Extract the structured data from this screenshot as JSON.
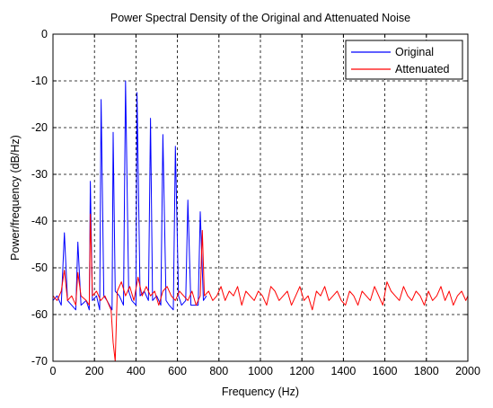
{
  "chart_data": {
    "type": "line",
    "title": "Power Spectral Density of the Original and Attenuated Noise",
    "xlabel": "Frequency (Hz)",
    "ylabel": "Power/frequency (dB/Hz)",
    "xlim": [
      0,
      2000
    ],
    "ylim": [
      -70,
      0
    ],
    "xticks": [
      0,
      200,
      400,
      600,
      800,
      1000,
      1200,
      1400,
      1600,
      1800,
      2000
    ],
    "yticks": [
      0,
      -10,
      -20,
      -30,
      -40,
      -50,
      -60,
      -70
    ],
    "grid": true,
    "legend_position": "top-right",
    "series": [
      {
        "name": "Original",
        "color": "#0000ff",
        "x": [
          0,
          20,
          40,
          55,
          70,
          90,
          110,
          120,
          135,
          160,
          175,
          180,
          190,
          210,
          225,
          232,
          245,
          260,
          285,
          290,
          300,
          320,
          340,
          350,
          365,
          380,
          400,
          405,
          420,
          440,
          460,
          470,
          480,
          500,
          520,
          530,
          545,
          560,
          580,
          590,
          605,
          620,
          640,
          650,
          665,
          680,
          700,
          710,
          725,
          740
        ],
        "values": [
          -57,
          -56,
          -58,
          -42.5,
          -57,
          -58,
          -59,
          -44.5,
          -58,
          -57,
          -59,
          -31.5,
          -57,
          -56,
          -59,
          -14,
          -56,
          -57,
          -59,
          -21,
          -55,
          -56,
          -58,
          -10,
          -55,
          -57,
          -58,
          -12.5,
          -56,
          -55,
          -57,
          -18,
          -57,
          -56,
          -58,
          -21.5,
          -57,
          -58,
          -59,
          -24,
          -56,
          -58,
          -57,
          -35.5,
          -58,
          -58,
          -58,
          -38,
          -57,
          -56
        ]
      },
      {
        "name": "Attenuated",
        "color": "#ff0000",
        "x": [
          0,
          20,
          40,
          55,
          70,
          90,
          110,
          120,
          135,
          160,
          175,
          180,
          190,
          210,
          230,
          250,
          280,
          290,
          300,
          310,
          330,
          350,
          370,
          390,
          410,
          430,
          450,
          470,
          490,
          510,
          530,
          550,
          570,
          590,
          610,
          630,
          650,
          670,
          690,
          710,
          720,
          730,
          750,
          770,
          790,
          810,
          830,
          850,
          870,
          890,
          910,
          930,
          950,
          970,
          990,
          1010,
          1030,
          1050,
          1070,
          1090,
          1110,
          1130,
          1150,
          1170,
          1190,
          1210,
          1230,
          1250,
          1270,
          1290,
          1310,
          1330,
          1350,
          1370,
          1390,
          1410,
          1430,
          1450,
          1470,
          1490,
          1510,
          1530,
          1550,
          1570,
          1590,
          1610,
          1630,
          1650,
          1670,
          1690,
          1710,
          1730,
          1750,
          1770,
          1790,
          1810,
          1830,
          1850,
          1870,
          1890,
          1910,
          1930,
          1950,
          1970,
          1990,
          2000
        ],
        "values": [
          -56,
          -57,
          -55,
          -50.5,
          -57,
          -56,
          -58,
          -51,
          -56,
          -57,
          -58,
          -38.5,
          -56,
          -55,
          -57,
          -56,
          -59,
          -66,
          -70,
          -55,
          -53,
          -56,
          -54,
          -57,
          -52,
          -56,
          -54,
          -56,
          -55,
          -58,
          -55,
          -54,
          -56,
          -57,
          -55,
          -56,
          -57,
          -55,
          -58,
          -56,
          -42,
          -56,
          -55,
          -57,
          -56,
          -54,
          -57,
          -55,
          -56,
          -54,
          -58,
          -55,
          -56,
          -57,
          -55,
          -56,
          -58,
          -54,
          -55,
          -57,
          -56,
          -55,
          -58,
          -56,
          -54,
          -57,
          -56,
          -59,
          -55,
          -56,
          -54,
          -57,
          -56,
          -55,
          -57,
          -58,
          -55,
          -56,
          -58,
          -55,
          -56,
          -57,
          -54,
          -56,
          -58,
          -53,
          -55,
          -56,
          -57,
          -54,
          -56,
          -57,
          -55,
          -56,
          -58,
          -55,
          -57,
          -56,
          -54,
          -57,
          -55,
          -58,
          -56,
          -55,
          -57,
          -56
        ]
      }
    ]
  }
}
